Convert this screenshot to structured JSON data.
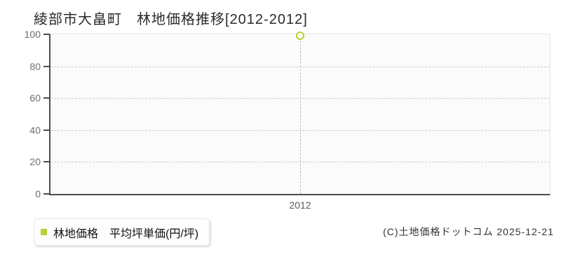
{
  "title": "綾部市大畠町　林地価格推移[2012-2012]",
  "legend": {
    "label": "林地価格　平均坪単価(円/坪)",
    "marker_color": "#b2d235"
  },
  "copyright": "(C)土地価格ドットコム 2025-12-21",
  "colors": {
    "accent_green": "#b2d235",
    "axis": "#4d4d4d",
    "grid_dashed": "#cccccc",
    "guide_dashed": "#b9b9b9",
    "plot_background": "#fbfbfb",
    "plot_border": "#e3e3e3",
    "tick_label": "#6e6e6e"
  },
  "chart_data": {
    "type": "scatter",
    "title": "綾部市大畠町　林地価格推移[2012-2012]",
    "categories": [
      "2012"
    ],
    "series": [
      {
        "name": "林地価格 平均坪単価(円/坪)",
        "values": [
          99
        ]
      }
    ],
    "xlabel": "",
    "ylabel": "",
    "ylim": [
      0,
      100
    ],
    "yticks": [
      0,
      20,
      40,
      60,
      80,
      100
    ],
    "grid": "horizontal-dashed",
    "legend_position": "bottom-left",
    "marker": "open-circle",
    "guide_lines": "vertical-dashed-from-point-to-axis"
  }
}
